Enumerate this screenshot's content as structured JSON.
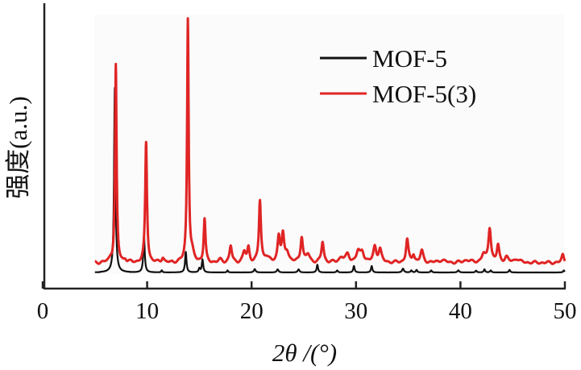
{
  "chart_data": {
    "type": "line",
    "title": "",
    "xlabel": "2θ /(°)",
    "ylabel": "强度(a.u.)",
    "xlim": [
      0,
      50
    ],
    "ylim": [
      0,
      100
    ],
    "xticks": [
      0,
      10,
      20,
      30,
      40,
      50
    ],
    "xtick_labels": [
      "0",
      "10",
      "20",
      "30",
      "40",
      "50"
    ],
    "x_range_measured": [
      5,
      50
    ],
    "legend_position": "top-right",
    "peak_model": "sum of narrow peaks on a flat baseline; each peak [2θ, height above baseline, half-width], intensity in arbitrary units",
    "series": [
      {
        "name": "MOF-5",
        "color": "#111111",
        "baseline": 0,
        "peaks": [
          [
            6.9,
            72,
            0.12
          ],
          [
            9.7,
            14.5,
            0.12
          ],
          [
            11.4,
            0.8,
            0.1
          ],
          [
            13.7,
            8,
            0.12
          ],
          [
            15.0,
            1.5,
            0.12
          ],
          [
            15.3,
            5,
            0.12
          ],
          [
            17.7,
            0.8,
            0.1
          ],
          [
            20.3,
            1.3,
            0.15
          ],
          [
            22.5,
            1.2,
            0.15
          ],
          [
            24.5,
            1.2,
            0.15
          ],
          [
            26.3,
            3,
            0.12
          ],
          [
            28.2,
            0.8,
            0.12
          ],
          [
            29.8,
            2.5,
            0.12
          ],
          [
            31.5,
            2.5,
            0.12
          ],
          [
            34.5,
            1.5,
            0.15
          ],
          [
            35.3,
            0.8,
            0.12
          ],
          [
            35.8,
            1,
            0.12
          ],
          [
            37.2,
            0.8,
            0.12
          ],
          [
            39.8,
            0.8,
            0.15
          ],
          [
            41.5,
            0.7,
            0.12
          ],
          [
            42.3,
            1.2,
            0.12
          ],
          [
            42.9,
            0.8,
            0.12
          ],
          [
            44.7,
            1,
            0.12
          ],
          [
            49.9,
            0.8,
            0.12
          ]
        ]
      },
      {
        "name": "MOF-5(3)",
        "color": "#e02424",
        "baseline": 3.8,
        "peaks": [
          [
            6.5,
            1,
            0.2
          ],
          [
            7.0,
            77,
            0.13
          ],
          [
            7.9,
            1.2,
            0.2
          ],
          [
            9.9,
            47,
            0.15
          ],
          [
            11.5,
            2,
            0.2
          ],
          [
            13.9,
            95,
            0.13
          ],
          [
            14.3,
            3,
            0.3
          ],
          [
            15.5,
            17,
            0.15
          ],
          [
            17.0,
            1,
            0.3
          ],
          [
            18.0,
            6.5,
            0.2
          ],
          [
            19.3,
            4,
            0.25
          ],
          [
            19.7,
            5.5,
            0.18
          ],
          [
            20.8,
            24,
            0.17
          ],
          [
            21.4,
            2,
            0.4
          ],
          [
            22.6,
            10,
            0.2
          ],
          [
            23.0,
            10,
            0.2
          ],
          [
            23.4,
            4,
            0.3
          ],
          [
            24.8,
            10,
            0.2
          ],
          [
            25.4,
            3,
            0.3
          ],
          [
            26.8,
            8,
            0.2
          ],
          [
            28.6,
            2,
            0.4
          ],
          [
            29.2,
            3,
            0.3
          ],
          [
            30.2,
            4,
            0.3
          ],
          [
            30.6,
            4,
            0.3
          ],
          [
            31.8,
            6,
            0.25
          ],
          [
            32.3,
            5,
            0.25
          ],
          [
            34.9,
            9,
            0.2
          ],
          [
            35.5,
            3,
            0.2
          ],
          [
            36.3,
            4.5,
            0.25
          ],
          [
            38.2,
            1,
            0.5
          ],
          [
            40.6,
            1,
            0.5
          ],
          [
            42.2,
            3,
            0.3
          ],
          [
            42.8,
            13.5,
            0.22
          ],
          [
            43.6,
            6.5,
            0.2
          ],
          [
            44.4,
            2,
            0.3
          ],
          [
            45.4,
            1.5,
            0.4
          ],
          [
            49.8,
            3,
            0.2
          ]
        ]
      }
    ]
  }
}
